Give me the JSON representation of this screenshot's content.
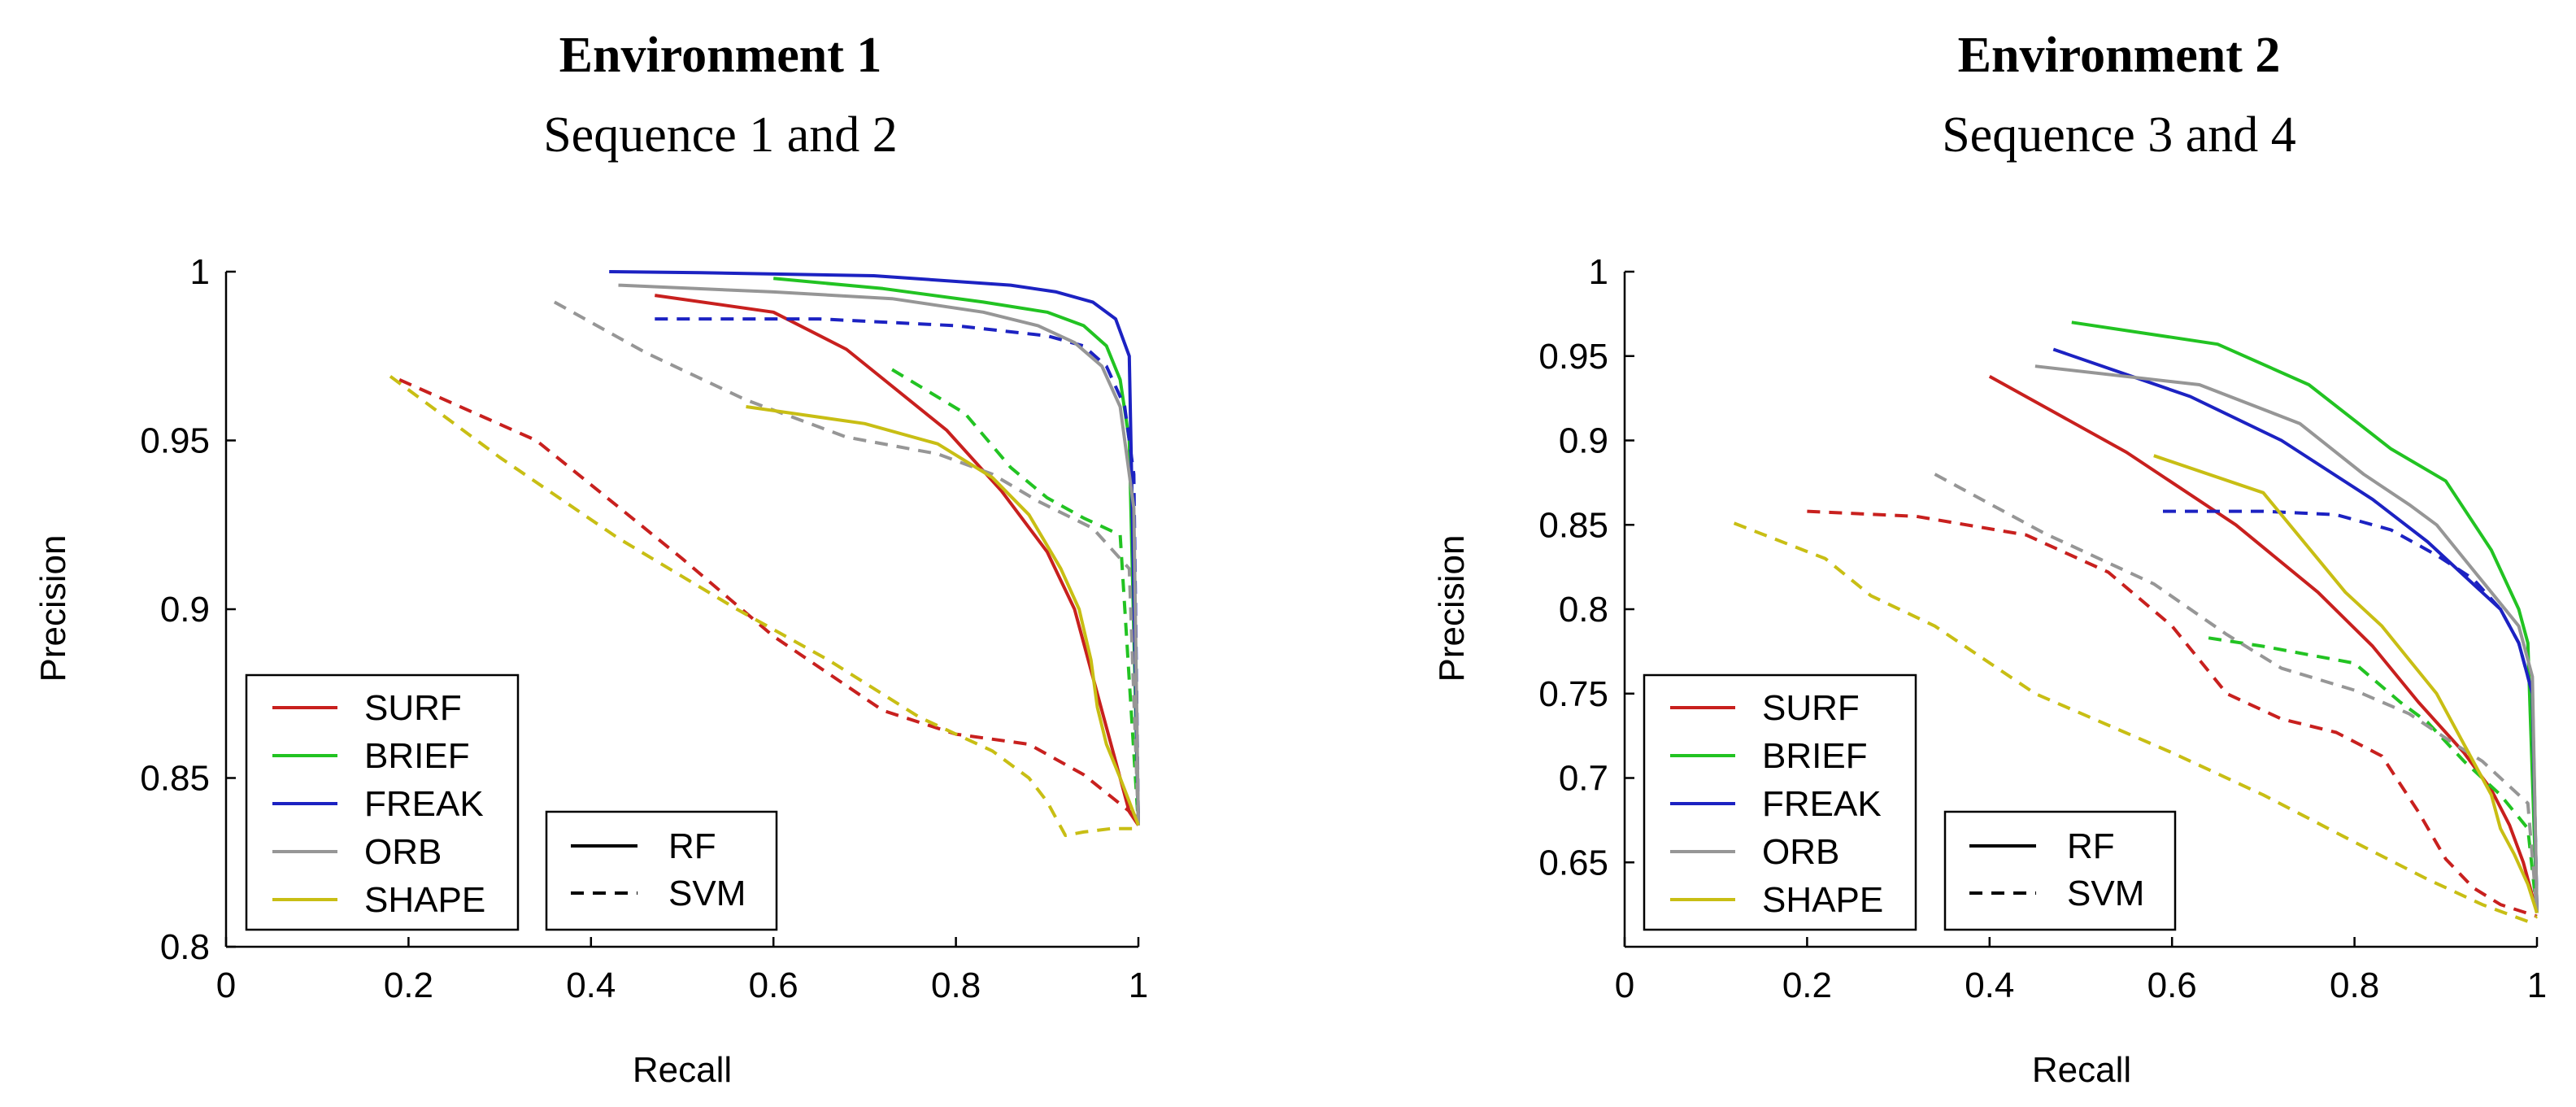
{
  "chart_data": [
    {
      "type": "line",
      "title": "Environment 1",
      "subtitle": "Sequence 1 and 2",
      "xlabel": "Recall",
      "ylabel": "Precision",
      "xlim": [
        0,
        1
      ],
      "ylim": [
        0.8,
        1
      ],
      "xticks": [
        0,
        0.2,
        0.4,
        0.6,
        0.8,
        1
      ],
      "xtick_labels": [
        "0",
        "0.2",
        "0.4",
        "0.6",
        "0.8",
        "1"
      ],
      "yticks": [
        0.8,
        0.85,
        0.9,
        0.95,
        1
      ],
      "ytick_labels": [
        "0.8",
        "0.85",
        "0.9",
        "0.95",
        "1"
      ],
      "grid": false,
      "legend_descriptors": {
        "placement": "bottom-left",
        "entries": [
          {
            "label": "SURF",
            "color": "#c8201e"
          },
          {
            "label": "BRIEF",
            "color": "#22c322"
          },
          {
            "label": "FREAK",
            "color": "#1c22c2"
          },
          {
            "label": "ORB",
            "color": "#969696"
          },
          {
            "label": "SHAPE",
            "color": "#c8be14"
          }
        ]
      },
      "legend_styles": {
        "placement": "bottom-center",
        "entries": [
          {
            "label": "RF",
            "style": "solid"
          },
          {
            "label": "SVM",
            "style": "dashed"
          }
        ]
      },
      "series": [
        {
          "name": "SURF",
          "classifier": "RF",
          "color": "#c8201e",
          "style": "solid",
          "x": [
            0.47,
            0.6,
            0.68,
            0.79,
            0.85,
            0.9,
            0.93,
            0.96,
            0.99,
            1.0
          ],
          "y": [
            0.993,
            0.988,
            0.977,
            0.953,
            0.935,
            0.917,
            0.9,
            0.87,
            0.84,
            0.836
          ]
        },
        {
          "name": "SURF",
          "classifier": "SVM",
          "color": "#c8201e",
          "style": "dashed",
          "x": [
            0.19,
            0.34,
            0.5,
            0.6,
            0.72,
            0.8,
            0.88,
            0.94,
            1.0
          ],
          "y": [
            0.968,
            0.95,
            0.915,
            0.892,
            0.87,
            0.863,
            0.86,
            0.851,
            0.838
          ]
        },
        {
          "name": "BRIEF",
          "classifier": "RF",
          "color": "#22c322",
          "style": "solid",
          "x": [
            0.6,
            0.72,
            0.83,
            0.9,
            0.94,
            0.965,
            0.98,
            0.99,
            1.0
          ],
          "y": [
            0.998,
            0.995,
            0.991,
            0.988,
            0.984,
            0.978,
            0.968,
            0.95,
            0.836
          ]
        },
        {
          "name": "BRIEF",
          "classifier": "SVM",
          "color": "#22c322",
          "style": "dashed",
          "x": [
            0.73,
            0.81,
            0.86,
            0.9,
            0.94,
            0.98,
            1.0
          ],
          "y": [
            0.971,
            0.958,
            0.942,
            0.933,
            0.927,
            0.922,
            0.836
          ]
        },
        {
          "name": "FREAK",
          "classifier": "RF",
          "color": "#1c22c2",
          "style": "solid",
          "x": [
            0.42,
            0.52,
            0.71,
            0.86,
            0.91,
            0.95,
            0.975,
            0.99,
            1.0
          ],
          "y": [
            1.0,
            0.9997,
            0.9988,
            0.996,
            0.994,
            0.991,
            0.986,
            0.975,
            0.836
          ]
        },
        {
          "name": "FREAK",
          "classifier": "SVM",
          "color": "#1c22c2",
          "style": "dashed",
          "x": [
            0.47,
            0.65,
            0.8,
            0.9,
            0.94,
            0.965,
            0.985,
            0.995,
            1.0
          ],
          "y": [
            0.986,
            0.986,
            0.984,
            0.981,
            0.978,
            0.972,
            0.96,
            0.94,
            0.836
          ]
        },
        {
          "name": "ORB",
          "classifier": "RF",
          "color": "#969696",
          "style": "solid",
          "x": [
            0.43,
            0.6,
            0.73,
            0.83,
            0.89,
            0.93,
            0.96,
            0.98,
            0.995,
            1.0
          ],
          "y": [
            0.996,
            0.994,
            0.992,
            0.988,
            0.984,
            0.979,
            0.972,
            0.96,
            0.93,
            0.836
          ]
        },
        {
          "name": "ORB",
          "classifier": "SVM",
          "color": "#969696",
          "style": "dashed",
          "x": [
            0.36,
            0.46,
            0.57,
            0.68,
            0.78,
            0.84,
            0.89,
            0.95,
            0.99,
            1.0
          ],
          "y": [
            0.991,
            0.976,
            0.962,
            0.951,
            0.946,
            0.94,
            0.932,
            0.924,
            0.912,
            0.836
          ]
        },
        {
          "name": "SHAPE",
          "classifier": "RF",
          "color": "#c8be14",
          "style": "solid",
          "x": [
            0.57,
            0.7,
            0.78,
            0.84,
            0.88,
            0.915,
            0.935,
            0.948,
            0.955,
            0.965,
            0.98,
            1.0
          ],
          "y": [
            0.96,
            0.955,
            0.949,
            0.939,
            0.928,
            0.912,
            0.9,
            0.885,
            0.871,
            0.86,
            0.85,
            0.836
          ]
        },
        {
          "name": "SHAPE",
          "classifier": "SVM",
          "color": "#c8be14",
          "style": "dashed",
          "x": [
            0.18,
            0.3,
            0.43,
            0.56,
            0.66,
            0.76,
            0.84,
            0.88,
            0.9,
            0.92,
            0.94,
            0.97,
            1.0
          ],
          "y": [
            0.969,
            0.945,
            0.921,
            0.9,
            0.885,
            0.868,
            0.858,
            0.85,
            0.843,
            0.833,
            0.834,
            0.835,
            0.835
          ]
        }
      ]
    },
    {
      "type": "line",
      "title": "Environment 2",
      "subtitle": "Sequence 3 and 4",
      "xlabel": "Recall",
      "ylabel": "Precision",
      "xlim": [
        0,
        1
      ],
      "ylim": [
        0.6,
        1
      ],
      "xticks": [
        0,
        0.2,
        0.4,
        0.6,
        0.8,
        1
      ],
      "xtick_labels": [
        "0",
        "0.2",
        "0.4",
        "0.6",
        "0.8",
        "1"
      ],
      "yticks": [
        0.65,
        0.7,
        0.75,
        0.8,
        0.85,
        0.9,
        0.95,
        1
      ],
      "ytick_labels": [
        "0.65",
        "0.7",
        "0.75",
        "0.8",
        "0.85",
        "0.9",
        "0.95",
        "1"
      ],
      "grid": false,
      "legend_descriptors": {
        "placement": "bottom-left",
        "entries": [
          {
            "label": "SURF",
            "color": "#c8201e"
          },
          {
            "label": "BRIEF",
            "color": "#22c322"
          },
          {
            "label": "FREAK",
            "color": "#1c22c2"
          },
          {
            "label": "ORB",
            "color": "#969696"
          },
          {
            "label": "SHAPE",
            "color": "#c8be14"
          }
        ]
      },
      "legend_styles": {
        "placement": "bottom-center",
        "entries": [
          {
            "label": "RF",
            "style": "solid"
          },
          {
            "label": "SVM",
            "style": "dashed"
          }
        ]
      },
      "series": [
        {
          "name": "SURF",
          "classifier": "RF",
          "color": "#c8201e",
          "style": "solid",
          "x": [
            0.4,
            0.55,
            0.67,
            0.76,
            0.82,
            0.87,
            0.92,
            0.95,
            0.97,
            0.985,
            1.0
          ],
          "y": [
            0.938,
            0.893,
            0.85,
            0.81,
            0.778,
            0.745,
            0.715,
            0.693,
            0.672,
            0.65,
            0.62
          ]
        },
        {
          "name": "SURF",
          "classifier": "SVM",
          "color": "#c8201e",
          "style": "dashed",
          "x": [
            0.2,
            0.32,
            0.44,
            0.53,
            0.6,
            0.66,
            0.72,
            0.78,
            0.83,
            0.87,
            0.9,
            0.93,
            0.96,
            1.0
          ],
          "y": [
            0.858,
            0.855,
            0.844,
            0.822,
            0.79,
            0.75,
            0.735,
            0.727,
            0.713,
            0.68,
            0.652,
            0.635,
            0.625,
            0.618
          ]
        },
        {
          "name": "BRIEF",
          "classifier": "RF",
          "color": "#22c322",
          "style": "solid",
          "x": [
            0.49,
            0.65,
            0.75,
            0.84,
            0.9,
            0.95,
            0.98,
            0.99,
            1.0
          ],
          "y": [
            0.97,
            0.957,
            0.933,
            0.895,
            0.876,
            0.835,
            0.8,
            0.78,
            0.62
          ]
        },
        {
          "name": "BRIEF",
          "classifier": "SVM",
          "color": "#22c322",
          "style": "dashed",
          "x": [
            0.64,
            0.7,
            0.8,
            0.85,
            0.88,
            0.92,
            0.96,
            0.99,
            1.0
          ],
          "y": [
            0.783,
            0.778,
            0.768,
            0.745,
            0.733,
            0.71,
            0.69,
            0.67,
            0.62
          ]
        },
        {
          "name": "FREAK",
          "classifier": "RF",
          "color": "#1c22c2",
          "style": "solid",
          "x": [
            0.47,
            0.62,
            0.72,
            0.82,
            0.88,
            0.92,
            0.96,
            0.98,
            0.995,
            1.0
          ],
          "y": [
            0.954,
            0.926,
            0.9,
            0.865,
            0.84,
            0.82,
            0.8,
            0.78,
            0.75,
            0.62
          ]
        },
        {
          "name": "FREAK",
          "classifier": "SVM",
          "color": "#1c22c2",
          "style": "dashed",
          "x": [
            0.59,
            0.7,
            0.78,
            0.84,
            0.89,
            0.93,
            0.96,
            0.98,
            0.995,
            1.0
          ],
          "y": [
            0.858,
            0.858,
            0.856,
            0.847,
            0.832,
            0.818,
            0.8,
            0.78,
            0.75,
            0.62
          ]
        },
        {
          "name": "ORB",
          "classifier": "RF",
          "color": "#969696",
          "style": "solid",
          "x": [
            0.45,
            0.63,
            0.74,
            0.81,
            0.86,
            0.89,
            0.92,
            0.95,
            0.98,
            0.995,
            1.0
          ],
          "y": [
            0.944,
            0.933,
            0.91,
            0.88,
            0.862,
            0.85,
            0.83,
            0.81,
            0.79,
            0.76,
            0.62
          ]
        },
        {
          "name": "ORB",
          "classifier": "SVM",
          "color": "#969696",
          "style": "dashed",
          "x": [
            0.34,
            0.46,
            0.58,
            0.66,
            0.72,
            0.8,
            0.86,
            0.91,
            0.94,
            0.96,
            0.99,
            1.0
          ],
          "y": [
            0.88,
            0.845,
            0.815,
            0.785,
            0.765,
            0.752,
            0.738,
            0.72,
            0.71,
            0.7,
            0.685,
            0.62
          ]
        },
        {
          "name": "SHAPE",
          "classifier": "RF",
          "color": "#c8be14",
          "style": "solid",
          "x": [
            0.58,
            0.7,
            0.79,
            0.83,
            0.86,
            0.89,
            0.92,
            0.94,
            0.95,
            0.96,
            0.975,
            0.99,
            1.0
          ],
          "y": [
            0.891,
            0.869,
            0.81,
            0.79,
            0.77,
            0.75,
            0.72,
            0.7,
            0.69,
            0.67,
            0.655,
            0.637,
            0.62
          ]
        },
        {
          "name": "SHAPE",
          "classifier": "SVM",
          "color": "#c8be14",
          "style": "dashed",
          "x": [
            0.12,
            0.22,
            0.27,
            0.34,
            0.45,
            0.6,
            0.7,
            0.8,
            0.88,
            0.94,
            0.99,
            1.0
          ],
          "y": [
            0.851,
            0.83,
            0.808,
            0.79,
            0.75,
            0.715,
            0.69,
            0.662,
            0.64,
            0.625,
            0.615,
            0.618
          ]
        }
      ]
    }
  ]
}
